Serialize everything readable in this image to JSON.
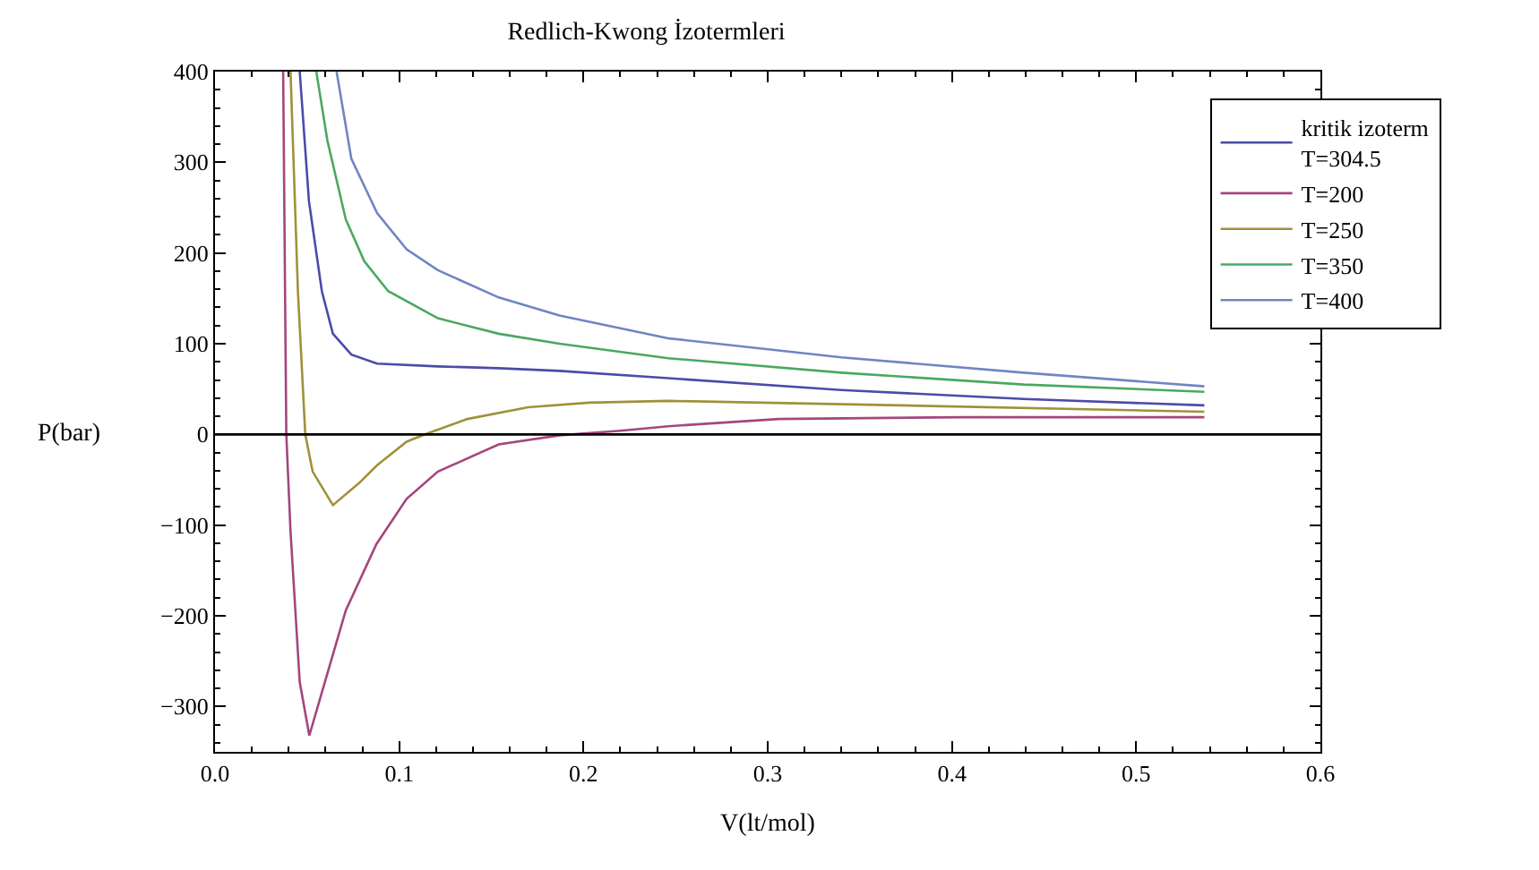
{
  "chart_data": {
    "type": "line",
    "title": "Redlich-Kwong İzotermleri",
    "xlabel": "V(lt/mol)",
    "ylabel": "P(bar)",
    "xlim": [
      0,
      0.6
    ],
    "xticks": [
      {
        "value": 0,
        "label": "0.0"
      },
      0.1,
      0.2,
      0.3,
      0.4,
      0.5,
      0.6
    ],
    "ylim": [
      -350,
      400
    ],
    "yticks": [
      -300,
      -200,
      -100,
      0,
      100,
      200,
      300,
      400
    ],
    "legend": "top right",
    "marker": "none",
    "line_style": "solid",
    "ref_lines": [
      {
        "axis": "y",
        "value": 0,
        "color": "#000000"
      }
    ],
    "series": [
      {
        "name": "kritik izoterm\nT=304.5",
        "color": "#4b4ba8",
        "x": [
          0.046,
          0.051,
          0.058,
          0.064,
          0.074,
          0.088,
          0.121,
          0.154,
          0.187,
          0.246,
          0.34,
          0.439,
          0.537
        ],
        "values": [
          400,
          257,
          158,
          111,
          88,
          78,
          75,
          73,
          70,
          62,
          49,
          39,
          32
        ]
      },
      {
        "name": "T=200",
        "color": "#a4467e",
        "x": [
          0.037,
          0.0387,
          0.041,
          0.046,
          0.0512,
          0.071,
          0.0876,
          0.104,
          0.121,
          0.154,
          0.187,
          0.22,
          0.246,
          0.306,
          0.406,
          0.537
        ],
        "values": [
          400,
          0,
          -107,
          -273,
          -332,
          -194,
          -121,
          -71,
          -41,
          -11,
          -1,
          4,
          9,
          17,
          19,
          19
        ]
      },
      {
        "name": "T=250",
        "color": "#a0913a",
        "x": [
          0.041,
          0.045,
          0.049,
          0.053,
          0.064,
          0.078,
          0.088,
          0.104,
          0.114,
          0.137,
          0.17,
          0.203,
          0.246,
          0.372,
          0.537
        ],
        "values": [
          400,
          158,
          0,
          -41,
          -78,
          -54,
          -34,
          -8,
          0,
          17,
          30,
          35,
          37,
          32,
          25
        ]
      },
      {
        "name": "T=350",
        "color": "#4aa860",
        "x": [
          0.055,
          0.061,
          0.071,
          0.081,
          0.094,
          0.121,
          0.154,
          0.187,
          0.246,
          0.34,
          0.439,
          0.537
        ],
        "values": [
          400,
          324,
          237,
          191,
          158,
          128,
          111,
          100,
          84,
          68,
          55,
          47
        ]
      },
      {
        "name": "T=400",
        "color": "#6e86c2",
        "x": [
          0.066,
          0.074,
          0.088,
          0.104,
          0.121,
          0.154,
          0.187,
          0.22,
          0.246,
          0.34,
          0.439,
          0.537
        ],
        "values": [
          400,
          304,
          244,
          204,
          181,
          151,
          131,
          117,
          106,
          85,
          68,
          53
        ]
      }
    ]
  }
}
